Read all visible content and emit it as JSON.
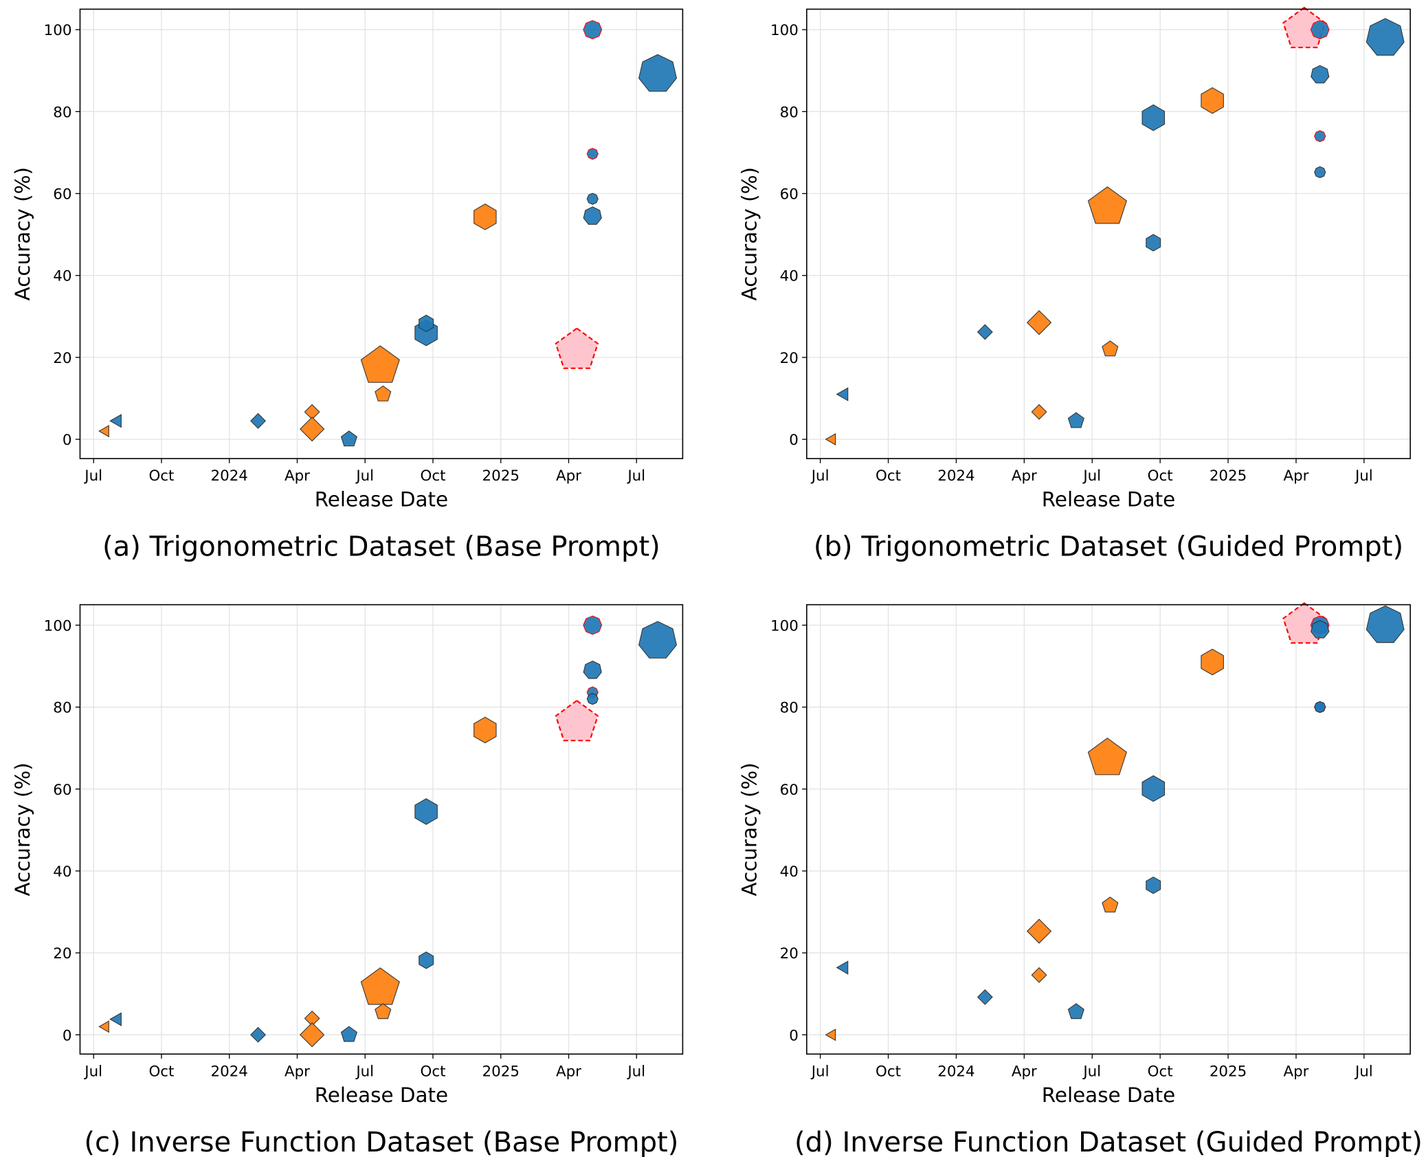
{
  "chart_data": [
    {
      "type": "scatter",
      "title": "(a) Trigonometric Dataset (Base Prompt)",
      "xlabel": "Release Date",
      "ylabel": "Accuracy (%)",
      "xlim": [
        2023.45,
        2025.67
      ],
      "ylim": [
        -4.7,
        105
      ],
      "grid": true,
      "xticks": [
        {
          "value": 2023.5,
          "label": "Jul"
        },
        {
          "value": 2023.75,
          "label": "Oct"
        },
        2024,
        {
          "value": 2024.25,
          "label": "Apr"
        },
        {
          "value": 2024.5,
          "label": "Jul"
        },
        {
          "value": 2024.75,
          "label": "Oct"
        },
        2025,
        {
          "value": 2025.25,
          "label": "Apr"
        },
        {
          "value": 2025.5,
          "label": "Jul"
        }
      ],
      "yticks": [
        0,
        20,
        40,
        60,
        80,
        100
      ],
      "x": [
        2023.544,
        2023.588,
        2024.106,
        2024.305,
        2024.305,
        2024.441,
        2024.556,
        2024.566,
        2024.725,
        2024.725,
        2024.942,
        2025.28,
        2025.338,
        2025.338,
        2025.338,
        2025.338,
        2025.578
      ],
      "y": [
        2,
        4.5,
        4.5,
        6.7,
        2.5,
        0,
        17.9,
        11,
        26,
        28.3,
        54.3,
        21.7,
        100,
        69.7,
        58.7,
        54.5,
        89.2
      ],
      "marker": [
        "tri-left",
        "tri-left",
        "diamond",
        "diamond",
        "diamond",
        "pentagon",
        "pentagon",
        "pentagon",
        "hexagon",
        "hexagon",
        "hexagon",
        "pentagon",
        "octagon",
        "octagon",
        "octagon",
        "heptagon",
        "heptagon"
      ],
      "size": [
        7,
        8,
        8,
        8,
        13,
        9,
        22,
        9,
        14,
        9,
        14,
        24,
        10,
        6,
        6,
        10,
        21
      ],
      "color": [
        "#ff7f0e",
        "#1f77b4",
        "#1f77b4",
        "#ff7f0e",
        "#ff7f0e",
        "#1f77b4",
        "#ff7f0e",
        "#ff7f0e",
        "#1f77b4",
        "#1f77b4",
        "#ff7f0e",
        "#ffc0cb",
        "#1f77b4",
        "#1f77b4",
        "#1f77b4",
        "#1f77b4",
        "#1f77b4"
      ],
      "edgecolor": [
        "#333333",
        "#333333",
        "#333333",
        "#333333",
        "#333333",
        "#333333",
        "#333333",
        "#333333",
        "#333333",
        "#333333",
        "#333333",
        "#ff0000",
        "#ff0000",
        "#ff0000",
        "#333333",
        "#333333",
        "#333333"
      ],
      "linestyle": [
        "solid",
        "solid",
        "solid",
        "solid",
        "solid",
        "solid",
        "solid",
        "solid",
        "solid",
        "solid",
        "solid",
        "dashed",
        "solid",
        "solid",
        "solid",
        "solid",
        "solid"
      ]
    },
    {
      "type": "scatter",
      "title": "(b) Trigonometric Dataset (Guided Prompt)",
      "xlabel": "Release Date",
      "ylabel": "Accuracy (%)",
      "xlim": [
        2023.45,
        2025.67
      ],
      "ylim": [
        -4.7,
        105
      ],
      "grid": true,
      "xticks": [
        {
          "value": 2023.5,
          "label": "Jul"
        },
        {
          "value": 2023.75,
          "label": "Oct"
        },
        2024,
        {
          "value": 2024.25,
          "label": "Apr"
        },
        {
          "value": 2024.5,
          "label": "Jul"
        },
        {
          "value": 2024.75,
          "label": "Oct"
        },
        2025,
        {
          "value": 2025.25,
          "label": "Apr"
        },
        {
          "value": 2025.5,
          "label": "Jul"
        }
      ],
      "yticks": [
        0,
        20,
        40,
        60,
        80,
        100
      ],
      "x": [
        2023.544,
        2023.588,
        2024.106,
        2024.305,
        2024.305,
        2024.441,
        2024.556,
        2024.566,
        2024.725,
        2024.725,
        2024.942,
        2025.28,
        2025.338,
        2025.338,
        2025.338,
        2025.338,
        2025.578
      ],
      "y": [
        0,
        11,
        26.2,
        6.7,
        28.5,
        4.5,
        56.7,
        22,
        78.5,
        48,
        82.7,
        100,
        100,
        74,
        65.2,
        89,
        98
      ],
      "marker": [
        "tri-left",
        "tri-left",
        "diamond",
        "diamond",
        "diamond",
        "pentagon",
        "pentagon",
        "pentagon",
        "hexagon",
        "hexagon",
        "hexagon",
        "pentagon",
        "octagon",
        "octagon",
        "octagon",
        "heptagon",
        "heptagon"
      ],
      "size": [
        7,
        8,
        8,
        8,
        13,
        9,
        22,
        9,
        14,
        9,
        14,
        24,
        10,
        6,
        6,
        10,
        21
      ],
      "color": [
        "#ff7f0e",
        "#1f77b4",
        "#1f77b4",
        "#ff7f0e",
        "#ff7f0e",
        "#1f77b4",
        "#ff7f0e",
        "#ff7f0e",
        "#1f77b4",
        "#1f77b4",
        "#ff7f0e",
        "#ffc0cb",
        "#1f77b4",
        "#1f77b4",
        "#1f77b4",
        "#1f77b4",
        "#1f77b4"
      ],
      "edgecolor": [
        "#333333",
        "#333333",
        "#333333",
        "#333333",
        "#333333",
        "#333333",
        "#333333",
        "#333333",
        "#333333",
        "#333333",
        "#333333",
        "#ff0000",
        "#ff0000",
        "#ff0000",
        "#333333",
        "#333333",
        "#333333"
      ],
      "linestyle": [
        "solid",
        "solid",
        "solid",
        "solid",
        "solid",
        "solid",
        "solid",
        "solid",
        "solid",
        "solid",
        "solid",
        "dashed",
        "solid",
        "solid",
        "solid",
        "solid",
        "solid"
      ]
    },
    {
      "type": "scatter",
      "title": "(c) Inverse Function Dataset (Base Prompt)",
      "xlabel": "Release Date",
      "ylabel": "Accuracy (%)",
      "xlim": [
        2023.45,
        2025.67
      ],
      "ylim": [
        -4.7,
        105
      ],
      "grid": true,
      "xticks": [
        {
          "value": 2023.5,
          "label": "Jul"
        },
        {
          "value": 2023.75,
          "label": "Oct"
        },
        2024,
        {
          "value": 2024.25,
          "label": "Apr"
        },
        {
          "value": 2024.5,
          "label": "Jul"
        },
        {
          "value": 2024.75,
          "label": "Oct"
        },
        2025,
        {
          "value": 2025.25,
          "label": "Apr"
        },
        {
          "value": 2025.5,
          "label": "Jul"
        }
      ],
      "yticks": [
        0,
        20,
        40,
        60,
        80,
        100
      ],
      "x": [
        2023.544,
        2023.588,
        2024.106,
        2024.305,
        2024.305,
        2024.441,
        2024.556,
        2024.566,
        2024.725,
        2024.725,
        2024.942,
        2025.28,
        2025.338,
        2025.338,
        2025.338,
        2025.338,
        2025.578
      ],
      "y": [
        2,
        3.8,
        0,
        4,
        0,
        0,
        11.4,
        5.6,
        54.5,
        18.2,
        74.4,
        76.2,
        100,
        83.6,
        82,
        89,
        96.2
      ],
      "marker": [
        "tri-left",
        "tri-left",
        "diamond",
        "diamond",
        "diamond",
        "pentagon",
        "pentagon",
        "pentagon",
        "hexagon",
        "hexagon",
        "hexagon",
        "pentagon",
        "octagon",
        "octagon",
        "octagon",
        "heptagon",
        "heptagon"
      ],
      "size": [
        7,
        8,
        8,
        8,
        13,
        9,
        22,
        9,
        14,
        9,
        14,
        24,
        10,
        6,
        6,
        10,
        21
      ],
      "color": [
        "#ff7f0e",
        "#1f77b4",
        "#1f77b4",
        "#ff7f0e",
        "#ff7f0e",
        "#1f77b4",
        "#ff7f0e",
        "#ff7f0e",
        "#1f77b4",
        "#1f77b4",
        "#ff7f0e",
        "#ffc0cb",
        "#1f77b4",
        "#1f77b4",
        "#1f77b4",
        "#1f77b4",
        "#1f77b4"
      ],
      "edgecolor": [
        "#333333",
        "#333333",
        "#333333",
        "#333333",
        "#333333",
        "#333333",
        "#333333",
        "#333333",
        "#333333",
        "#333333",
        "#333333",
        "#ff0000",
        "#ff0000",
        "#ff0000",
        "#333333",
        "#333333",
        "#333333"
      ],
      "linestyle": [
        "solid",
        "solid",
        "solid",
        "solid",
        "solid",
        "solid",
        "solid",
        "solid",
        "solid",
        "solid",
        "solid",
        "dashed",
        "solid",
        "solid",
        "solid",
        "solid",
        "solid"
      ]
    },
    {
      "type": "scatter",
      "title": "(d) Inverse Function Dataset (Guided Prompt)",
      "xlabel": "Release Date",
      "ylabel": "Accuracy (%)",
      "xlim": [
        2023.45,
        2025.67
      ],
      "ylim": [
        -4.7,
        105
      ],
      "grid": true,
      "xticks": [
        {
          "value": 2023.5,
          "label": "Jul"
        },
        {
          "value": 2023.75,
          "label": "Oct"
        },
        2024,
        {
          "value": 2024.25,
          "label": "Apr"
        },
        {
          "value": 2024.5,
          "label": "Jul"
        },
        {
          "value": 2024.75,
          "label": "Oct"
        },
        2025,
        {
          "value": 2025.25,
          "label": "Apr"
        },
        {
          "value": 2025.5,
          "label": "Jul"
        }
      ],
      "yticks": [
        0,
        20,
        40,
        60,
        80,
        100
      ],
      "x": [
        2023.544,
        2023.588,
        2024.106,
        2024.305,
        2024.305,
        2024.441,
        2024.556,
        2024.566,
        2024.725,
        2024.725,
        2024.942,
        2025.28,
        2025.338,
        2025.338,
        2025.338,
        2025.338,
        2025.578
      ],
      "y": [
        0,
        16.4,
        9.2,
        14.6,
        25.3,
        5.6,
        67.5,
        31.6,
        60.1,
        36.5,
        91,
        100,
        100,
        80,
        80,
        98.9,
        100
      ],
      "marker": [
        "tri-left",
        "tri-left",
        "diamond",
        "diamond",
        "diamond",
        "pentagon",
        "pentagon",
        "pentagon",
        "hexagon",
        "hexagon",
        "hexagon",
        "pentagon",
        "octagon",
        "octagon",
        "octagon",
        "heptagon",
        "heptagon"
      ],
      "size": [
        7,
        8,
        8,
        8,
        13,
        9,
        22,
        9,
        14,
        9,
        14,
        24,
        10,
        6,
        6,
        10,
        21
      ],
      "color": [
        "#ff7f0e",
        "#1f77b4",
        "#1f77b4",
        "#ff7f0e",
        "#ff7f0e",
        "#1f77b4",
        "#ff7f0e",
        "#ff7f0e",
        "#1f77b4",
        "#1f77b4",
        "#ff7f0e",
        "#ffc0cb",
        "#1f77b4",
        "#1f77b4",
        "#1f77b4",
        "#1f77b4",
        "#1f77b4"
      ],
      "edgecolor": [
        "#333333",
        "#333333",
        "#333333",
        "#333333",
        "#333333",
        "#333333",
        "#333333",
        "#333333",
        "#333333",
        "#333333",
        "#333333",
        "#ff0000",
        "#ff0000",
        "#ff0000",
        "#333333",
        "#333333",
        "#333333"
      ],
      "linestyle": [
        "solid",
        "solid",
        "solid",
        "solid",
        "solid",
        "solid",
        "solid",
        "solid",
        "solid",
        "solid",
        "solid",
        "dashed",
        "solid",
        "solid",
        "solid",
        "solid",
        "solid"
      ]
    }
  ]
}
